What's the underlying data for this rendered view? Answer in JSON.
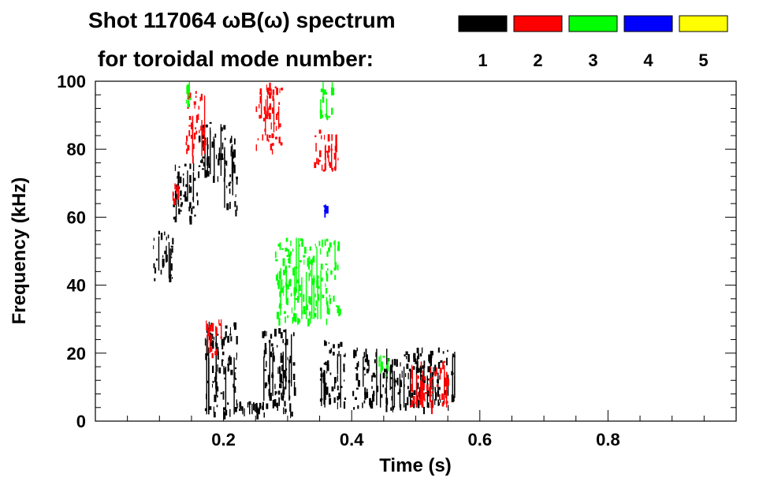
{
  "title_line1": "Shot 117064 ωB(ω) spectrum",
  "title_line2": "for toroidal mode number:",
  "chart_data": {
    "type": "heatmap",
    "title": "Shot 117064 ωB(ω) spectrum",
    "xlabel": "Time (s)",
    "ylabel": "Frequency (kHz)",
    "xlim": [
      0.0,
      1.0
    ],
    "ylim": [
      0,
      100
    ],
    "x_ticks": [
      0.2,
      0.4,
      0.6,
      0.8
    ],
    "x_tick_labels": [
      "0.2",
      "0.4",
      "0.6",
      "0.8"
    ],
    "y_ticks": [
      0,
      20,
      40,
      60,
      80,
      100
    ],
    "y_tick_labels": [
      "0",
      "20",
      "40",
      "60",
      "80",
      "100"
    ],
    "grid": false,
    "legend_placement": "top-right",
    "legend": [
      {
        "mode": "1",
        "color": "#000000"
      },
      {
        "mode": "2",
        "color": "#ff0000"
      },
      {
        "mode": "3",
        "color": "#00ff00"
      },
      {
        "mode": "4",
        "color": "#0000ff"
      },
      {
        "mode": "5",
        "color": "#ffff00"
      }
    ],
    "series": [
      {
        "mode": 1,
        "color": "#000000",
        "regions": [
          {
            "t": [
              0.09,
              0.12
            ],
            "f": [
              42,
              56
            ]
          },
          {
            "t": [
              0.12,
              0.16
            ],
            "f": [
              60,
              76
            ]
          },
          {
            "t": [
              0.16,
              0.2
            ],
            "f": [
              72,
              88
            ]
          },
          {
            "t": [
              0.2,
              0.22
            ],
            "f": [
              62,
              86
            ]
          },
          {
            "t": [
              0.17,
              0.22
            ],
            "f": [
              2,
              30
            ]
          },
          {
            "t": [
              0.22,
              0.31
            ],
            "f": [
              2,
              6
            ]
          },
          {
            "t": [
              0.26,
              0.31
            ],
            "f": [
              6,
              28
            ]
          },
          {
            "t": [
              0.35,
              0.39
            ],
            "f": [
              4,
              24
            ]
          },
          {
            "t": [
              0.4,
              0.56
            ],
            "f": [
              4,
              22
            ]
          }
        ]
      },
      {
        "mode": 2,
        "color": "#ff0000",
        "regions": [
          {
            "t": [
              0.12,
              0.13
            ],
            "f": [
              64,
              70
            ]
          },
          {
            "t": [
              0.14,
              0.17
            ],
            "f": [
              78,
              98
            ]
          },
          {
            "t": [
              0.17,
              0.2
            ],
            "f": [
              20,
              30
            ]
          },
          {
            "t": [
              0.25,
              0.29
            ],
            "f": [
              80,
              100
            ]
          },
          {
            "t": [
              0.34,
              0.38
            ],
            "f": [
              74,
              86
            ]
          },
          {
            "t": [
              0.49,
              0.55
            ],
            "f": [
              4,
              18
            ]
          }
        ]
      },
      {
        "mode": 3,
        "color": "#00ff00",
        "regions": [
          {
            "t": [
              0.14,
              0.15
            ],
            "f": [
              94,
              100
            ]
          },
          {
            "t": [
              0.28,
              0.38
            ],
            "f": [
              30,
              54
            ]
          },
          {
            "t": [
              0.35,
              0.37
            ],
            "f": [
              88,
              100
            ]
          },
          {
            "t": [
              0.44,
              0.46
            ],
            "f": [
              14,
              20
            ]
          }
        ]
      },
      {
        "mode": 4,
        "color": "#0000ff",
        "regions": [
          {
            "t": [
              0.355,
              0.36
            ],
            "f": [
              62,
              64
            ]
          }
        ]
      },
      {
        "mode": 5,
        "color": "#ffff00",
        "regions": []
      }
    ]
  }
}
